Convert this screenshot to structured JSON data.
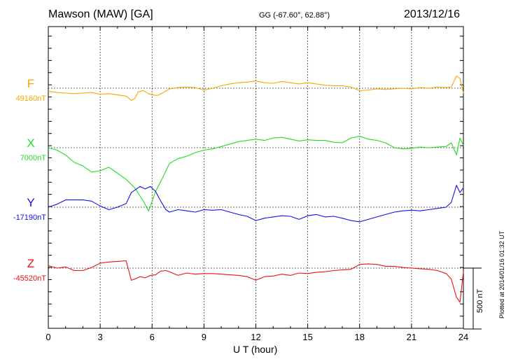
{
  "chart_data": {
    "type": "line",
    "title": "Mawson (MAW)  [GA]",
    "coordinates": "GG (-67.60°,  62.88°)",
    "date": "2013/12/16",
    "xlabel": "U T (hour)",
    "xlim": [
      0,
      24
    ],
    "x_ticks": [
      "0",
      "3",
      "6",
      "9",
      "12",
      "15",
      "18",
      "21",
      "24"
    ],
    "grid": true,
    "scale_bar": "500 nT",
    "plotted_note": "Plotted at 2014/01/16 01:32 UT",
    "series": [
      {
        "name": "F",
        "baseline_label": "49160nT",
        "color": "#f5a800",
        "x": [
          0,
          0.5,
          1,
          1.5,
          2,
          2.5,
          3,
          3.5,
          4,
          4.5,
          4.8,
          5,
          5.2,
          5.5,
          5.8,
          6,
          6.3,
          6.6,
          7,
          7.5,
          8,
          8.5,
          9,
          9.5,
          10,
          10.5,
          11,
          11.5,
          12,
          12.5,
          13,
          13.5,
          14,
          14.5,
          15,
          15.5,
          16,
          16.5,
          17,
          17.5,
          18,
          18.5,
          19,
          19.5,
          20,
          20.5,
          21,
          21.5,
          22,
          22.5,
          23,
          23.3,
          23.6,
          23.8,
          24
        ],
        "y": [
          -25,
          -35,
          -40,
          -45,
          -40,
          -35,
          -50,
          -45,
          -55,
          -65,
          -100,
          -85,
          -30,
          -20,
          -45,
          -55,
          -60,
          -40,
          -5,
          5,
          10,
          5,
          -15,
          0,
          20,
          35,
          45,
          50,
          60,
          45,
          40,
          55,
          45,
          35,
          45,
          35,
          25,
          20,
          20,
          10,
          -20,
          -15,
          -5,
          -10,
          -5,
          0,
          -5,
          5,
          0,
          10,
          5,
          10,
          100,
          80,
          -40
        ]
      },
      {
        "name": "X",
        "baseline_label": "7000nT",
        "color": "#22dd22",
        "x": [
          0,
          0.5,
          1,
          1.5,
          2,
          2.5,
          3,
          3.5,
          4,
          4.5,
          5,
          5.5,
          5.8,
          6,
          6.2,
          6.6,
          7,
          7.5,
          8,
          8.5,
          9,
          9.5,
          10,
          10.5,
          11,
          11.5,
          12,
          12.5,
          13,
          13.5,
          14,
          14.5,
          15,
          15.5,
          16,
          16.5,
          17,
          17.5,
          18,
          18.5,
          19,
          19.5,
          20,
          20.5,
          21,
          21.5,
          22,
          22.5,
          23,
          23.3,
          23.6,
          23.8,
          24
        ],
        "y": [
          0,
          -20,
          -60,
          -120,
          -150,
          -200,
          -190,
          -160,
          -210,
          -260,
          -330,
          -440,
          -520,
          -440,
          -360,
          -250,
          -130,
          -90,
          -70,
          -40,
          -20,
          -10,
          10,
          30,
          50,
          60,
          70,
          60,
          80,
          85,
          70,
          55,
          65,
          60,
          60,
          45,
          40,
          80,
          95,
          70,
          60,
          40,
          0,
          -10,
          -5,
          5,
          0,
          5,
          10,
          40,
          -60,
          80,
          20
        ]
      },
      {
        "name": "Y",
        "baseline_label": "-17190nT",
        "color": "#1010ee",
        "x": [
          0,
          0.5,
          1,
          1.5,
          2,
          2.5,
          3,
          3.5,
          4,
          4.5,
          4.8,
          5,
          5.3,
          5.6,
          5.9,
          6.2,
          6.5,
          6.8,
          7,
          7.5,
          8,
          8.5,
          9,
          9.5,
          10,
          10.5,
          11,
          11.5,
          12,
          12.5,
          13,
          13.5,
          14,
          14.5,
          15,
          15.5,
          16,
          16.5,
          17,
          17.5,
          18,
          18.5,
          19,
          19.5,
          20,
          20.5,
          21,
          21.5,
          22,
          22.5,
          23,
          23.3,
          23.6,
          23.8,
          24
        ],
        "y": [
          0,
          25,
          60,
          60,
          60,
          50,
          10,
          -20,
          0,
          30,
          120,
          140,
          170,
          150,
          170,
          130,
          50,
          -20,
          -40,
          -20,
          -30,
          -40,
          -20,
          -25,
          -20,
          -40,
          -60,
          -75,
          -110,
          -90,
          -80,
          -70,
          -75,
          -100,
          -70,
          -60,
          -80,
          -75,
          -90,
          -110,
          -120,
          -100,
          -80,
          -60,
          -40,
          -30,
          -25,
          -30,
          -20,
          -10,
          0,
          40,
          180,
          120,
          160
        ]
      },
      {
        "name": "Z",
        "baseline_label": "-45520nT",
        "color": "#ee1111",
        "x": [
          0,
          0.5,
          1,
          1.5,
          2,
          2.5,
          3,
          3.5,
          4,
          4.5,
          4.8,
          5,
          5.3,
          5.6,
          5.9,
          6.2,
          6.5,
          6.8,
          7,
          7.5,
          8,
          8.5,
          9,
          9.5,
          10,
          10.5,
          11,
          11.5,
          12,
          12.5,
          13,
          13.5,
          14,
          14.5,
          15,
          15.5,
          16,
          16.5,
          17,
          17.5,
          18,
          18.5,
          19,
          19.5,
          20,
          20.5,
          21,
          21.5,
          22,
          22.5,
          23,
          23.3,
          23.6,
          23.8,
          24
        ],
        "y": [
          20,
          0,
          10,
          -20,
          -20,
          5,
          40,
          50,
          55,
          60,
          -100,
          -90,
          -70,
          -80,
          -60,
          -55,
          -25,
          -20,
          -30,
          -60,
          -40,
          -50,
          -45,
          -45,
          -50,
          -55,
          -60,
          -70,
          -100,
          -70,
          -65,
          -50,
          -60,
          -40,
          -45,
          -35,
          -30,
          -20,
          -15,
          -10,
          30,
          35,
          30,
          15,
          15,
          5,
          0,
          -5,
          -10,
          -20,
          -45,
          -90,
          -240,
          -280,
          -30
        ]
      }
    ],
    "scale_nT_per_px": 5.75
  }
}
